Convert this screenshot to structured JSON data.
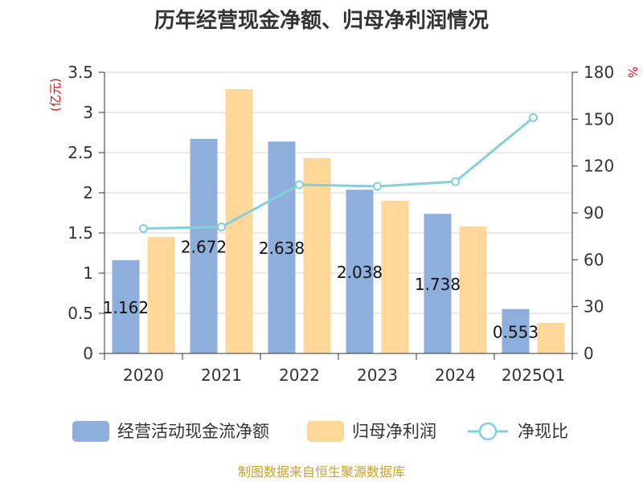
{
  "chart_data": {
    "type": "bar",
    "title": "历年经营现金净额、归母净利润情况",
    "categories": [
      "2020",
      "2021",
      "2022",
      "2023",
      "2024",
      "2025Q1"
    ],
    "series": [
      {
        "name": "经营活动现金流净额",
        "type": "bar",
        "axis": "left",
        "color": "#8eaedc",
        "values": [
          1.162,
          2.672,
          2.638,
          2.038,
          1.738,
          0.553
        ],
        "labels": [
          "1.162",
          "2.672",
          "2.638",
          "2.038",
          "1.738",
          "0.553"
        ]
      },
      {
        "name": "归母净利润",
        "type": "bar",
        "axis": "left",
        "color": "#ffd899",
        "values": [
          1.45,
          3.29,
          2.43,
          1.9,
          1.58,
          0.38
        ]
      },
      {
        "name": "净现比",
        "type": "line",
        "axis": "right",
        "color": "#84d0d6",
        "values": [
          80,
          81,
          108,
          107,
          110,
          151
        ]
      }
    ],
    "y_left": {
      "unit": "(亿元)",
      "ylim": [
        0,
        3.5
      ],
      "ticks": [
        0,
        0.5,
        1,
        1.5,
        2,
        2.5,
        3,
        3.5
      ],
      "tick_labels": [
        "0",
        "0.5",
        "1",
        "1.5",
        "2",
        "2.5",
        "3",
        "3.5"
      ]
    },
    "y_right": {
      "unit": "%",
      "ylim": [
        0,
        180
      ],
      "ticks": [
        0,
        30,
        60,
        90,
        120,
        150,
        180
      ],
      "tick_labels": [
        "0",
        "30",
        "60",
        "90",
        "120",
        "150",
        "180"
      ]
    },
    "grid": true,
    "legend_position": "bottom",
    "source": "制图数据来自恒生聚源数据库"
  }
}
